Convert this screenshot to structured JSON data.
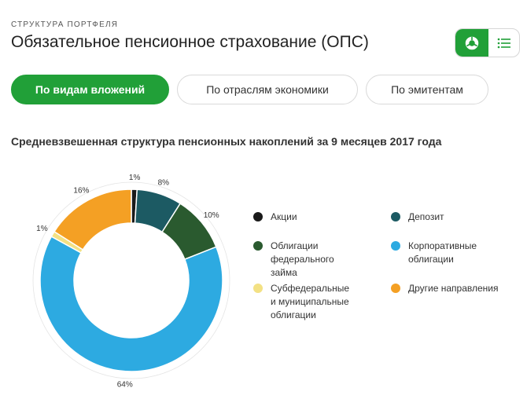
{
  "header": {
    "eyebrow": "СТРУКТУРА ПОРТФЕЛЯ",
    "title": "Обязательное пенсионное страхование (ОПС)"
  },
  "view_toggle": {
    "active": "chart",
    "chart_icon": "donut-chart-icon",
    "list_icon": "list-icon"
  },
  "tabs": [
    {
      "label": "По видам вложений",
      "active": true
    },
    {
      "label": "По отраслям экономики",
      "active": false
    },
    {
      "label": "По эмитентам",
      "active": false
    }
  ],
  "colors": {
    "accent": "#21a038"
  },
  "chart_data": {
    "type": "pie",
    "title": "Средневзвешенная структура пенсионных накоплений за 9 месяцев 2017 года",
    "donut": true,
    "slices": [
      {
        "name": "Акции",
        "value": 1,
        "label": "1%",
        "color": "#1a1a1a"
      },
      {
        "name": "Депозит",
        "value": 8,
        "label": "8%",
        "color": "#1c5a63"
      },
      {
        "name": "Облигации федерального займа",
        "value": 10,
        "label": "10%",
        "color": "#2a5a2f"
      },
      {
        "name": "Корпоративные облигации",
        "value": 64,
        "label": "64%",
        "color": "#2daae1"
      },
      {
        "name": "Субфедеральные и муниципальные облигации",
        "value": 1,
        "label": "1%",
        "color": "#f3e184"
      },
      {
        "name": "Другие направления",
        "value": 16,
        "label": "16%",
        "color": "#f4a024"
      }
    ],
    "legend": [
      {
        "label": "Акции",
        "color": "#1a1a1a"
      },
      {
        "label": "Депозит",
        "color": "#1c5a63"
      },
      {
        "label": "Облигации федерального займа",
        "color": "#2a5a2f"
      },
      {
        "label": "Корпоративные облигации",
        "color": "#2daae1"
      },
      {
        "label": "Субфедеральные и муниципальные облигации",
        "color": "#f3e184"
      },
      {
        "label": "Другие направления",
        "color": "#f4a024"
      }
    ],
    "legend_placement": "right"
  }
}
